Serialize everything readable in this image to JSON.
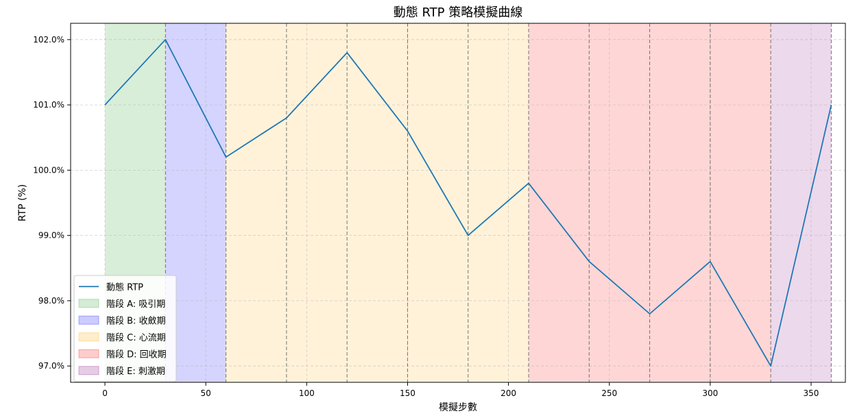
{
  "chart_data": {
    "type": "line",
    "title": "動態 RTP 策略模擬曲線",
    "xlabel": "模擬步數",
    "ylabel": "RTP (%)",
    "xlim": [
      -17,
      367
    ],
    "ylim": [
      96.75,
      102.25
    ],
    "x_ticks": [
      0,
      50,
      100,
      150,
      200,
      250,
      300,
      350
    ],
    "x_tick_labels": [
      "0",
      "50",
      "100",
      "150",
      "200",
      "250",
      "300",
      "350"
    ],
    "y_ticks": [
      97,
      98,
      99,
      100,
      101,
      102
    ],
    "y_tick_labels": [
      "97.0%",
      "98.0%",
      "99.0%",
      "100.0%",
      "101.0%",
      "102.0%"
    ],
    "grid": true,
    "legend_position": "lower-left",
    "series": [
      {
        "name": "動態 RTP",
        "color": "#1f77b4",
        "x": [
          0,
          30,
          60,
          90,
          120,
          150,
          180,
          210,
          240,
          270,
          300,
          330,
          360
        ],
        "y": [
          101.0,
          102.0,
          100.2,
          100.8,
          101.8,
          100.6,
          99.0,
          99.8,
          98.6,
          97.8,
          98.6,
          97.0,
          101.0
        ]
      }
    ],
    "phases": [
      {
        "name": "階段 A: 吸引期",
        "start": 0,
        "end": 30,
        "color": "#2ca02c"
      },
      {
        "name": "階段 B: 收斂期",
        "start": 30,
        "end": 60,
        "color": "#0000ff"
      },
      {
        "name": "階段 C: 心流期",
        "start": 60,
        "end": 210,
        "color": "#ffa500"
      },
      {
        "name": "階段 D: 回收期",
        "start": 210,
        "end": 330,
        "color": "#ff0000"
      },
      {
        "name": "階段 E: 刺激期",
        "start": 330,
        "end": 360,
        "color": "#800080"
      }
    ],
    "vlines": [
      30,
      60,
      90,
      120,
      150,
      180,
      210,
      240,
      270,
      300,
      330,
      360
    ]
  }
}
